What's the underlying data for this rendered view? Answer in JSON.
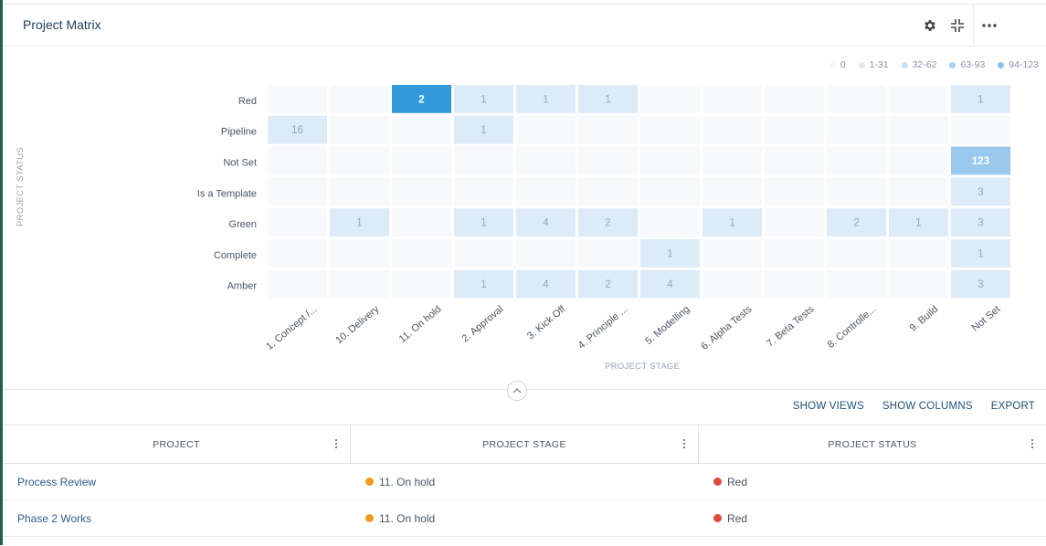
{
  "header": {
    "title": "Project Matrix",
    "settings_icon": "gear-icon",
    "collapse_icon": "compress-icon",
    "more_icon": "ellipsis-icon"
  },
  "colors": {
    "scale_0": "#f7f9fa",
    "scale_1": "#dcebf7",
    "scale_2": "#bcdaf2",
    "scale_3": "#a3cdf0",
    "scale_4": "#99c9ee",
    "highlight": "#3399dd",
    "orange": "#f29c1f",
    "red": "#e04b3c",
    "accent": "#1f5f55"
  },
  "legend": [
    {
      "label": "0",
      "color": "#f4f6f8"
    },
    {
      "label": "1-31",
      "color": "#dde9f4"
    },
    {
      "label": "32-62",
      "color": "#c5dff3"
    },
    {
      "label": "63-93",
      "color": "#a7d0f0"
    },
    {
      "label": "94-123",
      "color": "#8dc3ed"
    }
  ],
  "chart_data": {
    "type": "heatmap",
    "xlabel": "PROJECT STAGE",
    "ylabel": "PROJECT STATUS",
    "rows": [
      "Red",
      "Pipeline",
      "Not Set",
      "Is a Template",
      "Green",
      "Complete",
      "Amber"
    ],
    "columns": [
      "1. Concept /...",
      "10. Delivery",
      "11. On hold",
      "2. Approval",
      "3. Kick Off",
      "4. Principle ...",
      "5. Modelling",
      "6. Alpha Tests",
      "7. Beta Tests",
      "8. Controlle...",
      "9. Build",
      "Not Set"
    ],
    "values": [
      [
        0,
        0,
        2,
        1,
        1,
        1,
        0,
        0,
        0,
        0,
        0,
        1
      ],
      [
        16,
        0,
        0,
        1,
        0,
        0,
        0,
        0,
        0,
        0,
        0,
        0
      ],
      [
        0,
        0,
        0,
        0,
        0,
        0,
        0,
        0,
        0,
        0,
        0,
        123
      ],
      [
        0,
        0,
        0,
        0,
        0,
        0,
        0,
        0,
        0,
        0,
        0,
        3
      ],
      [
        0,
        1,
        0,
        1,
        4,
        2,
        0,
        1,
        0,
        2,
        1,
        3
      ],
      [
        0,
        0,
        0,
        0,
        0,
        0,
        1,
        0,
        0,
        0,
        0,
        1
      ],
      [
        0,
        0,
        0,
        1,
        4,
        2,
        4,
        0,
        0,
        0,
        0,
        3
      ]
    ],
    "selected": {
      "row": "Red",
      "column": "11. On hold"
    },
    "legend": [
      "0",
      "1-31",
      "32-62",
      "63-93",
      "94-123"
    ]
  },
  "actions": {
    "show_views": "SHOW VIEWS",
    "show_columns": "SHOW COLUMNS",
    "export": "EXPORT"
  },
  "table": {
    "columns": [
      "PROJECT",
      "PROJECT STAGE",
      "PROJECT STATUS"
    ],
    "rows": [
      {
        "project": "Process Review",
        "stage": "11. On hold",
        "stage_color": "#f29c1f",
        "status": "Red",
        "status_color": "#e04b3c"
      },
      {
        "project": "Phase 2 Works",
        "stage": "11. On hold",
        "stage_color": "#f29c1f",
        "status": "Red",
        "status_color": "#e04b3c"
      }
    ]
  }
}
